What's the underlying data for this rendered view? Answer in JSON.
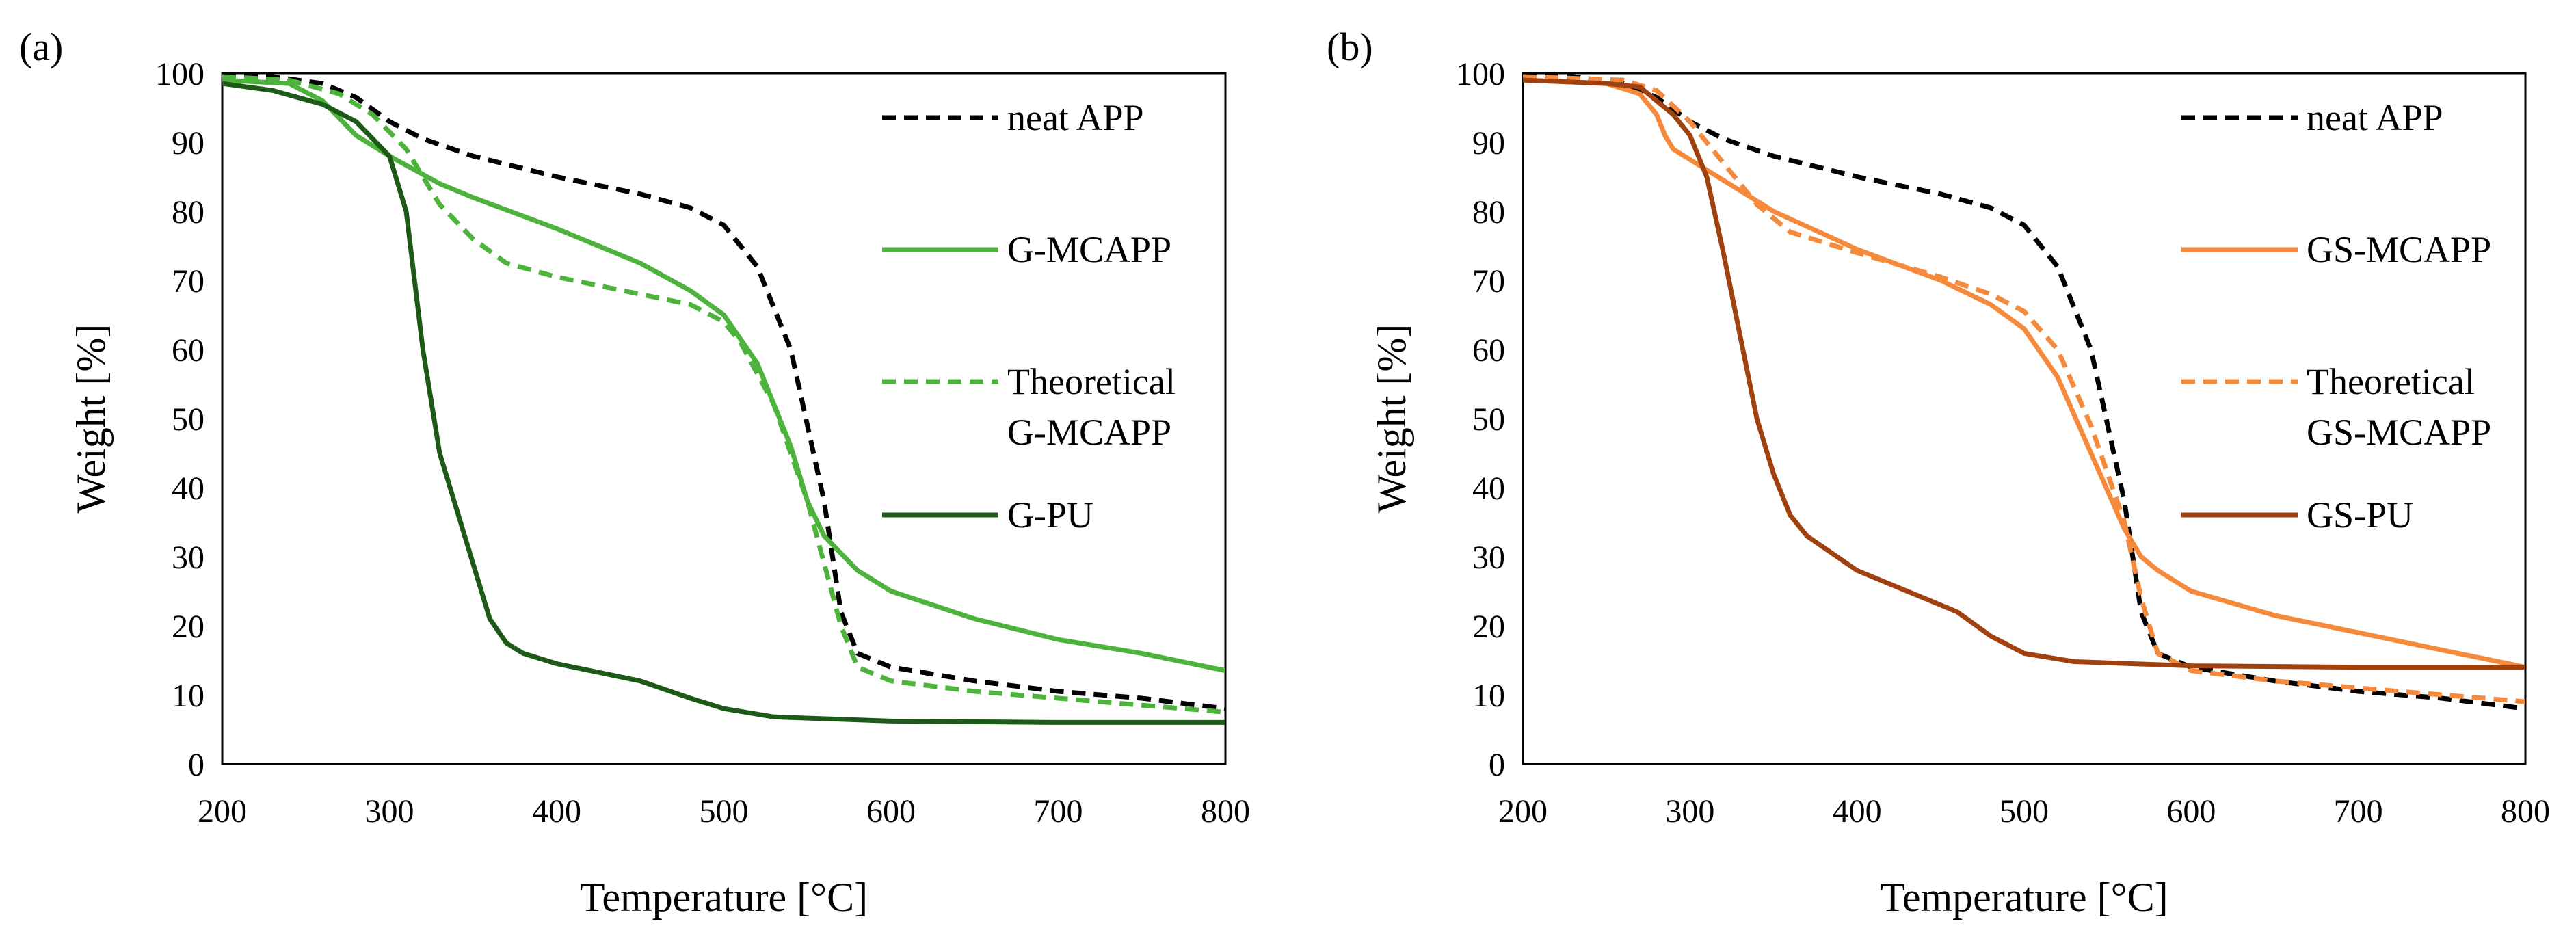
{
  "chart_data": [
    {
      "type": "line",
      "panel_label": "(a)",
      "xlabel": "Temperature [°C]",
      "ylabel": "Weight [%]",
      "xlim": [
        200,
        800
      ],
      "ylim": [
        0,
        100
      ],
      "xticks": [
        200,
        300,
        400,
        500,
        600,
        700,
        800
      ],
      "yticks": [
        0,
        10,
        20,
        30,
        40,
        50,
        60,
        70,
        80,
        90,
        100
      ],
      "series": [
        {
          "name": "neat APP",
          "legend_lines": [
            "neat APP"
          ],
          "color": "#000000",
          "dash": "dashed",
          "width": 3,
          "x": [
            200,
            230,
            260,
            280,
            300,
            320,
            350,
            400,
            450,
            480,
            500,
            520,
            540,
            560,
            570,
            580,
            600,
            650,
            700,
            750,
            800
          ],
          "y": [
            99.5,
            99.5,
            98.5,
            96.5,
            93,
            90.5,
            88,
            85,
            82.5,
            80.5,
            78,
            72,
            60,
            38,
            22,
            16,
            14,
            12,
            10.5,
            9.5,
            8
          ]
        },
        {
          "name": "G-MCAPP",
          "legend_lines": [
            "G-MCAPP"
          ],
          "color": "#4db33d",
          "dash": "solid",
          "width": 3,
          "x": [
            200,
            240,
            260,
            280,
            300,
            330,
            350,
            400,
            450,
            480,
            500,
            520,
            540,
            550,
            560,
            580,
            600,
            650,
            700,
            750,
            800
          ],
          "y": [
            99,
            98.5,
            96,
            91,
            88,
            84,
            82,
            77.5,
            72.5,
            68.5,
            65,
            58,
            46,
            38,
            33,
            28,
            25,
            21,
            18,
            16,
            13.5
          ]
        },
        {
          "name": "Theoretical G-MCAPP",
          "legend_lines": [
            "Theoretical",
            "G-MCAPP"
          ],
          "color": "#4db33d",
          "dash": "dashed",
          "width": 3,
          "x": [
            200,
            240,
            270,
            290,
            310,
            330,
            350,
            370,
            400,
            450,
            480,
            500,
            510,
            530,
            550,
            570,
            580,
            600,
            650,
            700,
            750,
            800
          ],
          "y": [
            99.5,
            99,
            97,
            94,
            89,
            81,
            76,
            72.5,
            70.5,
            68,
            66.5,
            64,
            61,
            52,
            38,
            20,
            14,
            12,
            10.5,
            9.5,
            8.5,
            7.5
          ]
        },
        {
          "name": "G-PU",
          "legend_lines": [
            "G-PU"
          ],
          "color": "#1e5a17",
          "dash": "solid",
          "width": 3,
          "x": [
            200,
            230,
            260,
            280,
            300,
            310,
            320,
            330,
            340,
            350,
            360,
            370,
            380,
            400,
            420,
            450,
            480,
            500,
            530,
            600,
            700,
            800
          ],
          "y": [
            98.5,
            97.5,
            95.5,
            93,
            88,
            80,
            60,
            45,
            37,
            29,
            21,
            17.5,
            16,
            14.5,
            13.5,
            12,
            9.5,
            8,
            6.8,
            6.2,
            6,
            6
          ]
        }
      ]
    },
    {
      "type": "line",
      "panel_label": "(b)",
      "xlabel": "Temperature [°C]",
      "ylabel": "Weight [%]",
      "xlim": [
        200,
        800
      ],
      "ylim": [
        0,
        100
      ],
      "xticks": [
        200,
        300,
        400,
        500,
        600,
        700,
        800
      ],
      "yticks": [
        0,
        10,
        20,
        30,
        40,
        50,
        60,
        70,
        80,
        90,
        100
      ],
      "series": [
        {
          "name": "neat APP",
          "legend_lines": [
            "neat APP"
          ],
          "color": "#000000",
          "dash": "dashed",
          "width": 3,
          "x": [
            200,
            230,
            260,
            280,
            300,
            320,
            350,
            400,
            450,
            480,
            500,
            520,
            540,
            560,
            570,
            580,
            600,
            650,
            700,
            750,
            800
          ],
          "y": [
            99.5,
            99.5,
            98.5,
            96.5,
            93,
            90.5,
            88,
            85,
            82.5,
            80.5,
            78,
            72,
            60,
            38,
            22,
            16,
            14,
            12,
            10.5,
            9.5,
            8
          ]
        },
        {
          "name": "GS-MCAPP",
          "legend_lines": [
            "GS-MCAPP"
          ],
          "color": "#f58a3c",
          "dash": "solid",
          "width": 3,
          "x": [
            200,
            250,
            270,
            280,
            285,
            290,
            300,
            350,
            400,
            450,
            480,
            500,
            520,
            540,
            560,
            570,
            580,
            600,
            650,
            700,
            750,
            800
          ],
          "y": [
            99,
            98.5,
            97,
            94,
            91,
            89,
            87.5,
            80,
            74.5,
            70,
            66.5,
            63,
            56,
            45,
            34,
            30,
            28,
            25,
            21.5,
            19,
            16.5,
            14
          ]
        },
        {
          "name": "Theoretical GS-MCAPP",
          "legend_lines": [
            "Theoretical",
            "GS-MCAPP"
          ],
          "color": "#f58a3c",
          "dash": "dashed",
          "width": 3,
          "x": [
            200,
            260,
            280,
            300,
            320,
            340,
            360,
            400,
            450,
            480,
            500,
            520,
            540,
            560,
            570,
            580,
            600,
            650,
            700,
            750,
            800
          ],
          "y": [
            99.5,
            99,
            97.5,
            93,
            87,
            81,
            77,
            74,
            70.5,
            68,
            65.5,
            60,
            49,
            35,
            24,
            16,
            13.5,
            12,
            11,
            10,
            9
          ]
        },
        {
          "name": "GS-PU",
          "legend_lines": [
            "GS-PU"
          ],
          "color": "#a0420f",
          "dash": "solid",
          "width": 3,
          "x": [
            200,
            250,
            270,
            280,
            290,
            300,
            310,
            320,
            330,
            340,
            350,
            360,
            370,
            400,
            430,
            460,
            480,
            500,
            530,
            600,
            700,
            800
          ],
          "y": [
            99,
            98.5,
            98,
            96,
            94,
            91,
            85,
            74,
            62,
            50,
            42,
            36,
            33,
            28,
            25,
            22,
            18.5,
            16,
            14.8,
            14.2,
            14,
            14
          ]
        }
      ]
    }
  ]
}
